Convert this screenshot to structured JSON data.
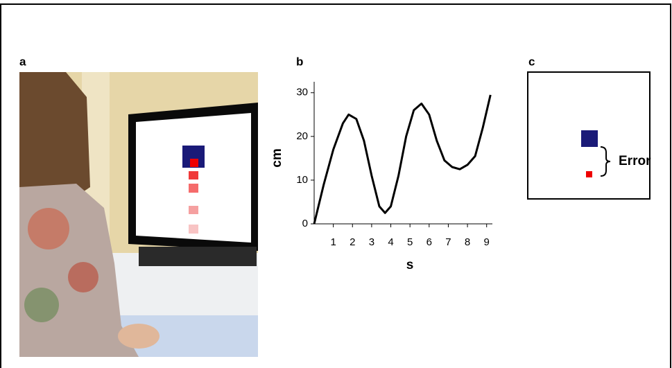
{
  "panels": {
    "a": "a",
    "b": "b",
    "c": "c"
  },
  "error_label": "Error",
  "chart_data": {
    "type": "line",
    "x_label": "s",
    "y_label": "cm",
    "x": [
      0,
      0.5,
      1,
      1.5,
      1.8,
      2.2,
      2.6,
      3,
      3.4,
      3.7,
      4,
      4.4,
      4.8,
      5.2,
      5.6,
      6,
      6.4,
      6.8,
      7.2,
      7.6,
      8,
      8.4,
      8.8,
      9.2
    ],
    "series": [
      {
        "color": "#000000",
        "values": [
          0,
          9,
          17,
          23,
          25,
          24,
          19,
          11,
          4,
          2.5,
          4,
          11,
          20,
          26,
          27.5,
          25,
          19,
          14.5,
          13,
          12.5,
          13.5,
          15.5,
          22,
          29.5
        ]
      }
    ],
    "xlim": [
      0,
      9.3
    ],
    "ylim": [
      0,
      32.5
    ],
    "xticks": [
      1,
      2,
      3,
      4,
      5,
      6,
      7,
      8,
      9
    ],
    "yticks": [
      0,
      10,
      20,
      30
    ]
  }
}
